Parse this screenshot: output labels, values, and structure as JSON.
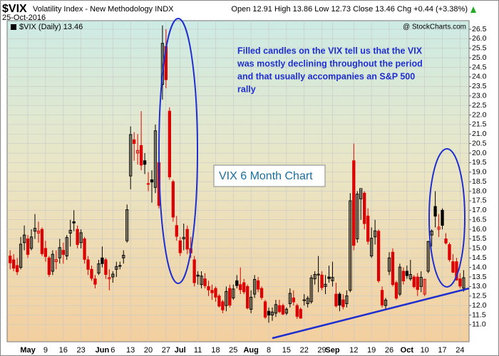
{
  "chart_data": {
    "type": "candlestick",
    "symbol": "$VIX",
    "title": "Volatility Index - New Methodology INDX",
    "date": "25-Oct-2016",
    "ohlc_labels": [
      "Open",
      "High",
      "Low",
      "Close"
    ],
    "change_label": "Chg",
    "change": "+0.44",
    "change_pct": "(+3.38%)",
    "legend": "$VIX (Daily)",
    "watermark": "@ StockCharts.com",
    "annotation": [
      "Filled candles on the VIX tell us that the VIX",
      "was mostly declining throughout the period",
      "and that usually accompanies an S&P 500",
      "rally"
    ],
    "box_label": "VIX 6 Month Chart",
    "up_color": "#000000",
    "down_color": "#dd0000",
    "categories": [
      "Apr 25",
      "Apr 26",
      "Apr 27",
      "Apr 28",
      "Apr 29",
      "May 2",
      "May 3",
      "May 4",
      "May 5",
      "May 6",
      "May 9",
      "May 10",
      "May 11",
      "May 12",
      "May 13",
      "May 16",
      "May 17",
      "May 18",
      "May 19",
      "May 20",
      "May 23",
      "May 24",
      "May 25",
      "May 26",
      "May 27",
      "May 31",
      "Jun 1",
      "Jun 2",
      "Jun 3",
      "Jun 6",
      "Jun 7",
      "Jun 8",
      "Jun 9",
      "Jun 10",
      "Jun 13",
      "Jun 14",
      "Jun 15",
      "Jun 16",
      "Jun 17",
      "Jun 20",
      "Jun 21",
      "Jun 22",
      "Jun 23",
      "Jun 24",
      "Jun 27",
      "Jun 28",
      "Jun 29",
      "Jun 30",
      "Jul 1",
      "Jul 5",
      "Jul 6",
      "Jul 7",
      "Jul 8",
      "Jul 11",
      "Jul 12",
      "Jul 13",
      "Jul 14",
      "Jul 15",
      "Jul 18",
      "Jul 19",
      "Jul 20",
      "Jul 21",
      "Jul 22",
      "Jul 25",
      "Jul 26",
      "Jul 27",
      "Jul 28",
      "Jul 29",
      "Aug 1",
      "Aug 2",
      "Aug 3",
      "Aug 4",
      "Aug 5",
      "Aug 8",
      "Aug 9",
      "Aug 10",
      "Aug 11",
      "Aug 12",
      "Aug 15",
      "Aug 16",
      "Aug 17",
      "Aug 18",
      "Aug 19",
      "Aug 22",
      "Aug 23",
      "Aug 24",
      "Aug 25",
      "Aug 26",
      "Aug 29",
      "Aug 30",
      "Aug 31",
      "Sep 1",
      "Sep 2",
      "Sep 6",
      "Sep 7",
      "Sep 8",
      "Sep 9",
      "Sep 12",
      "Sep 13",
      "Sep 14",
      "Sep 15",
      "Sep 16",
      "Sep 19",
      "Sep 20",
      "Sep 21",
      "Sep 22",
      "Sep 23",
      "Sep 26",
      "Sep 27",
      "Sep 28",
      "Sep 29",
      "Sep 30",
      "Oct 3",
      "Oct 4",
      "Oct 5",
      "Oct 6",
      "Oct 7",
      "Oct 10",
      "Oct 11",
      "Oct 12",
      "Oct 13",
      "Oct 14",
      "Oct 17",
      "Oct 18",
      "Oct 19",
      "Oct 20",
      "Oct 21",
      "Oct 24",
      "Oct 25"
    ],
    "open": [
      14.6,
      14.4,
      14.1,
      14.0,
      15.3,
      15.5,
      15.0,
      15.9,
      15.8,
      16.0,
      15.0,
      14.5,
      13.8,
      14.3,
      14.5,
      14.9,
      14.6,
      15.8,
      16.4,
      16.0,
      15.3,
      15.5,
      14.4,
      13.9,
      13.4,
      13.7,
      14.5,
      14.4,
      13.4,
      13.5,
      13.9,
      14.1,
      14.5,
      15.4,
      18.8,
      20.7,
      20.0,
      20.4,
      19.6,
      18.4,
      18.6,
      18.2,
      19.5,
      23.6,
      25.6,
      22.2,
      18.5,
      16.2,
      15.4,
      15.5,
      16.0,
      15.0,
      14.4,
      13.6,
      13.1,
      13.4,
      13.0,
      12.8,
      12.9,
      12.5,
      12.2,
      12.0,
      12.9,
      12.4,
      13.3,
      13.1,
      13.2,
      13.0,
      11.8,
      12.6,
      13.3,
      12.9,
      12.2,
      11.7,
      11.5,
      11.6,
      12.0,
      12.0,
      11.6,
      12.1,
      12.4,
      12.0,
      11.8,
      12.3,
      12.1,
      12.2,
      13.4,
      13.6,
      13.6,
      13.0,
      13.5,
      13.3,
      12.6,
      12.6,
      12.3,
      12.1,
      12.8,
      19.6,
      15.5,
      17.6,
      17.9,
      16.7,
      14.6,
      15.6,
      15.9,
      12.8,
      12.0,
      13.8,
      14.8,
      13.2,
      12.6,
      13.8,
      13.8,
      13.4,
      13.5,
      13.5,
      13.0,
      12.6,
      13.8,
      15.7,
      17.2,
      16.0,
      17.0,
      15.5,
      15.2,
      14.3,
      14.3,
      13.4,
      12.91
    ],
    "high": [
      14.9,
      14.7,
      14.5,
      15.6,
      16.2,
      15.7,
      16.0,
      16.8,
      16.4,
      16.1,
      15.4,
      14.6,
      14.9,
      14.9,
      15.5,
      15.3,
      15.7,
      16.5,
      17.0,
      16.2,
      16.0,
      15.6,
      14.6,
      14.1,
      13.6,
      14.4,
      15.1,
      14.5,
      13.9,
      13.8,
      14.3,
      14.3,
      14.9,
      17.3,
      21.4,
      21.1,
      21.0,
      22.2,
      20.0,
      19.0,
      19.1,
      21.5,
      19.7,
      26.7,
      26.5,
      22.4,
      18.6,
      16.7,
      15.6,
      16.3,
      16.2,
      15.6,
      14.6,
      13.8,
      13.8,
      13.7,
      13.3,
      13.1,
      13.0,
      12.6,
      12.3,
      13.0,
      13.1,
      13.1,
      13.6,
      14.0,
      13.4,
      13.1,
      12.8,
      13.6,
      13.5,
      13.0,
      12.3,
      11.9,
      11.9,
      12.3,
      12.3,
      12.1,
      11.9,
      12.9,
      12.8,
      12.1,
      11.9,
      12.6,
      12.5,
      13.6,
      13.8,
      14.6,
      13.8,
      13.6,
      14.1,
      14.3,
      13.2,
      12.7,
      12.6,
      12.8,
      17.9,
      20.5,
      18.0,
      18.1,
      18.0,
      17.1,
      16.1,
      16.5,
      16.0,
      13.0,
      12.4,
      14.8,
      15.0,
      13.3,
      14.2,
      14.0,
      14.1,
      14.4,
      13.6,
      13.7,
      13.8,
      13.4,
      15.4,
      16.0,
      18.0,
      16.8,
      17.1,
      15.8,
      15.3,
      14.7,
      14.5,
      13.7,
      13.86
    ],
    "low": [
      13.9,
      13.8,
      13.6,
      13.9,
      14.9,
      14.5,
      14.9,
      15.5,
      15.3,
      14.6,
      14.3,
      13.5,
      13.6,
      13.9,
      14.2,
      14.2,
      14.4,
      15.1,
      15.9,
      15.0,
      15.0,
      14.2,
      13.6,
      13.3,
      12.9,
      13.6,
      14.0,
      13.4,
      12.8,
      13.2,
      13.5,
      13.9,
      14.2,
      15.3,
      18.1,
      19.6,
      19.4,
      19.1,
      18.9,
      18.0,
      17.4,
      17.9,
      17.1,
      22.8,
      23.4,
      18.6,
      16.4,
      15.4,
      14.6,
      14.9,
      14.7,
      14.5,
      13.0,
      13.1,
      12.9,
      12.9,
      12.5,
      12.3,
      12.2,
      11.9,
      11.6,
      11.7,
      11.9,
      12.3,
      12.9,
      12.6,
      12.6,
      11.8,
      11.6,
      12.4,
      12.7,
      12.3,
      11.3,
      11.1,
      11.2,
      11.4,
      11.6,
      11.5,
      11.5,
      11.9,
      12.0,
      11.3,
      11.3,
      12.0,
      11.9,
      12.1,
      13.1,
      12.7,
      12.8,
      12.6,
      13.2,
      13.0,
      11.9,
      11.7,
      11.8,
      11.9,
      12.7,
      14.9,
      15.3,
      16.5,
      16.0,
      15.2,
      14.5,
      15.2,
      13.2,
      11.9,
      11.8,
      13.6,
      13.0,
      12.3,
      12.5,
      13.1,
      13.4,
      13.3,
      12.9,
      12.5,
      12.7,
      12.5,
      13.7,
      15.1,
      16.1,
      15.6,
      16.0,
      15.2,
      14.3,
      13.7,
      13.3,
      12.9,
      12.73
    ],
    "close": [
      14.24,
      13.96,
      13.77,
      15.22,
      15.7,
      14.68,
      15.6,
      16.05,
      15.91,
      14.72,
      14.57,
      13.63,
      14.69,
      14.41,
      15.04,
      14.68,
      15.57,
      15.95,
      16.33,
      15.2,
      15.82,
      14.42,
      13.9,
      13.43,
      13.12,
      14.19,
      14.2,
      13.63,
      13.47,
      13.65,
      14.05,
      14.08,
      14.64,
      17.03,
      20.97,
      20.5,
      20.14,
      19.37,
      19.41,
      18.37,
      18.48,
      21.17,
      17.25,
      25.76,
      23.85,
      18.75,
      16.64,
      15.63,
      14.77,
      15.58,
      14.96,
      14.76,
      13.2,
      13.54,
      13.55,
      13.04,
      12.82,
      12.67,
      12.44,
      11.97,
      11.77,
      12.74,
      12.02,
      12.87,
      13.05,
      12.83,
      12.72,
      11.87,
      12.44,
      13.37,
      12.86,
      12.42,
      11.39,
      11.5,
      11.66,
      12.05,
      11.68,
      11.55,
      11.81,
      12.64,
      12.19,
      11.43,
      11.34,
      12.27,
      12.38,
      13.45,
      13.63,
      13.65,
      12.94,
      13.12,
      13.42,
      13.48,
      11.98,
      12.02,
      11.94,
      12.51,
      17.5,
      15.16,
      17.85,
      18.14,
      16.3,
      15.37,
      15.53,
      15.92,
      13.3,
      12.02,
      12.29,
      14.5,
      13.1,
      12.39,
      14.02,
      13.29,
      13.57,
      13.63,
      12.99,
      12.84,
      13.48,
      13.38,
      15.36,
      15.91,
      16.69,
      16.12,
      16.21,
      15.28,
      14.41,
      13.75,
      13.34,
      13.02,
      13.46
    ],
    "xticks": [
      {
        "value": "May 2",
        "label": "May"
      },
      {
        "value": "May 9",
        "label": "9"
      },
      {
        "value": "May 16",
        "label": "16"
      },
      {
        "value": "May 23",
        "label": "23"
      },
      {
        "value": "Jun 1",
        "label": "Jun"
      },
      {
        "value": "Jun 6",
        "label": "6"
      },
      {
        "value": "Jun 13",
        "label": "13"
      },
      {
        "value": "Jun 20",
        "label": "20"
      },
      {
        "value": "Jun 27",
        "label": "27"
      },
      {
        "value": "Jul 1",
        "label": "Jul"
      },
      {
        "value": "Jul 11",
        "label": "11"
      },
      {
        "value": "Jul 18",
        "label": "18"
      },
      {
        "value": "Jul 25",
        "label": "25"
      },
      {
        "value": "Aug 1",
        "label": "Aug"
      },
      {
        "value": "Aug 8",
        "label": "8"
      },
      {
        "value": "Aug 15",
        "label": "15"
      },
      {
        "value": "Aug 22",
        "label": "22"
      },
      {
        "value": "Aug 29",
        "label": "29"
      },
      {
        "value": "Sep 1",
        "label": "Sep"
      },
      {
        "value": "Sep 12",
        "label": "12"
      },
      {
        "value": "Sep 19",
        "label": "19"
      },
      {
        "value": "Sep 26",
        "label": "26"
      },
      {
        "value": "Oct 3",
        "label": "Oct"
      },
      {
        "value": "Oct 10",
        "label": "10"
      },
      {
        "value": "Oct 17",
        "label": "17"
      },
      {
        "value": "Oct 24",
        "label": "24"
      }
    ],
    "ylim": [
      10.1,
      26.95
    ],
    "yticks": [
      {
        "value": 11,
        "label": "11.0"
      },
      11.5,
      {
        "value": 12,
        "label": "12.0"
      },
      12.5,
      {
        "value": 13,
        "label": "13.0"
      },
      13.5,
      {
        "value": 14,
        "label": "14.0"
      },
      14.5,
      {
        "value": 15,
        "label": "15.0"
      },
      15.5,
      {
        "value": 16,
        "label": "16.0"
      },
      16.5,
      {
        "value": 17,
        "label": "17.0"
      },
      17.5,
      {
        "value": 18,
        "label": "18.0"
      },
      18.5,
      {
        "value": 19,
        "label": "19.0"
      },
      19.5,
      {
        "value": 20,
        "label": "20.0"
      },
      20.5,
      {
        "value": 21,
        "label": "21.0"
      },
      21.5,
      {
        "value": 22,
        "label": "22.0"
      },
      22.5,
      {
        "value": 23,
        "label": "23.0"
      },
      23.5,
      {
        "value": 24,
        "label": "24.0"
      },
      24.5,
      {
        "value": 25,
        "label": "25.0"
      },
      25.5,
      {
        "value": 26,
        "label": "26.0"
      },
      26.5
    ],
    "grid": true
  }
}
